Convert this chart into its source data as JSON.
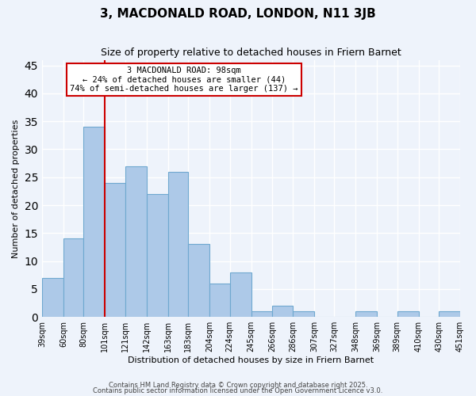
{
  "title": "3, MACDONALD ROAD, LONDON, N11 3JB",
  "subtitle": "Size of property relative to detached houses in Friern Barnet",
  "xlabel": "Distribution of detached houses by size in Friern Barnet",
  "ylabel": "Number of detached properties",
  "bar_edges": [
    39,
    60,
    80,
    101,
    121,
    142,
    163,
    183,
    204,
    224,
    245,
    266,
    286,
    307,
    327,
    348,
    369,
    389,
    410,
    430,
    451
  ],
  "bar_heights": [
    7,
    14,
    34,
    24,
    27,
    22,
    26,
    13,
    6,
    8,
    1,
    2,
    1,
    0,
    0,
    1,
    0,
    1,
    0,
    1
  ],
  "bar_color": "#adc9e8",
  "bar_edgecolor": "#6fa8d0",
  "vline_x": 101,
  "vline_color": "#cc0000",
  "annotation_title": "3 MACDONALD ROAD: 98sqm",
  "annotation_line1": "← 24% of detached houses are smaller (44)",
  "annotation_line2": "74% of semi-detached houses are larger (137) →",
  "annotation_box_color": "#ffffff",
  "annotation_box_edgecolor": "#cc0000",
  "ylim": [
    0,
    46
  ],
  "yticks": [
    0,
    5,
    10,
    15,
    20,
    25,
    30,
    35,
    40,
    45
  ],
  "tick_labels": [
    "39sqm",
    "60sqm",
    "80sqm",
    "101sqm",
    "121sqm",
    "142sqm",
    "163sqm",
    "183sqm",
    "204sqm",
    "224sqm",
    "245sqm",
    "266sqm",
    "286sqm",
    "307sqm",
    "327sqm",
    "348sqm",
    "369sqm",
    "389sqm",
    "410sqm",
    "430sqm",
    "451sqm"
  ],
  "footer1": "Contains HM Land Registry data © Crown copyright and database right 2025.",
  "footer2": "Contains public sector information licensed under the Open Government Licence v3.0.",
  "background_color": "#eef3fb",
  "grid_color": "#ffffff"
}
